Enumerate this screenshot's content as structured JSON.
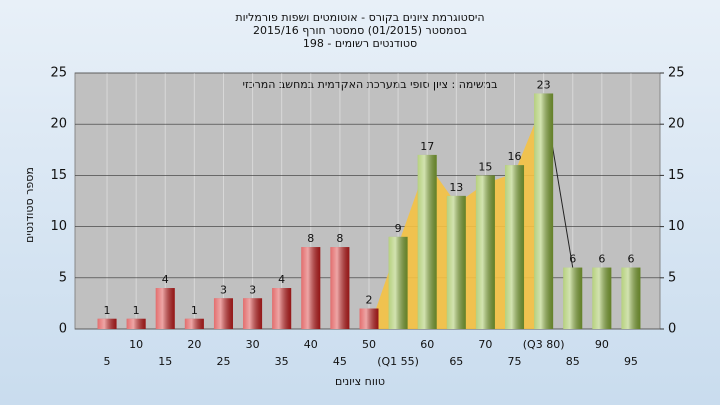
{
  "chart_data": {
    "type": "bar",
    "title": [
      "היסטוגרמת ציונים בקורס - אוטומטים ושפות פורמליות",
      "בסמסטר  (01/2015)  סמסטר חורף  2015/16",
      "סטודנטים רשומים - 198"
    ],
    "annotation": "במשימה : ציון סופי במערכת האקדמית במחשב המרכזי",
    "y_label": "מספר סטודנטים",
    "x_label": "טווח ציונים",
    "categories": [
      "5",
      "10",
      "15",
      "20",
      "25",
      "30",
      "35",
      "40",
      "45",
      "50",
      "(Q1 55)",
      "60",
      "65",
      "70",
      "75",
      "(Q3 80)",
      "85",
      "90",
      "95"
    ],
    "values": [
      1,
      1,
      4,
      1,
      3,
      3,
      4,
      8,
      8,
      2,
      9,
      17,
      13,
      15,
      16,
      23,
      6,
      6,
      6
    ],
    "colors": [
      "#d42020",
      "#d42020",
      "#d42020",
      "#d42020",
      "#d42020",
      "#d42020",
      "#d42020",
      "#d42020",
      "#d42020",
      "#d42020",
      "#8fb83a",
      "#8fb83a",
      "#8fb83a",
      "#8fb83a",
      "#8fb83a",
      "#8fb83a",
      "#8fb83a",
      "#8fb83a",
      "#8fb83a"
    ],
    "ylim": [
      0,
      25
    ],
    "yticks": [
      0,
      5,
      10,
      15,
      20,
      25
    ],
    "y2lim": [
      0,
      25
    ],
    "y2ticks": [
      0,
      5,
      10,
      15,
      20,
      25
    ],
    "grid": true
  }
}
